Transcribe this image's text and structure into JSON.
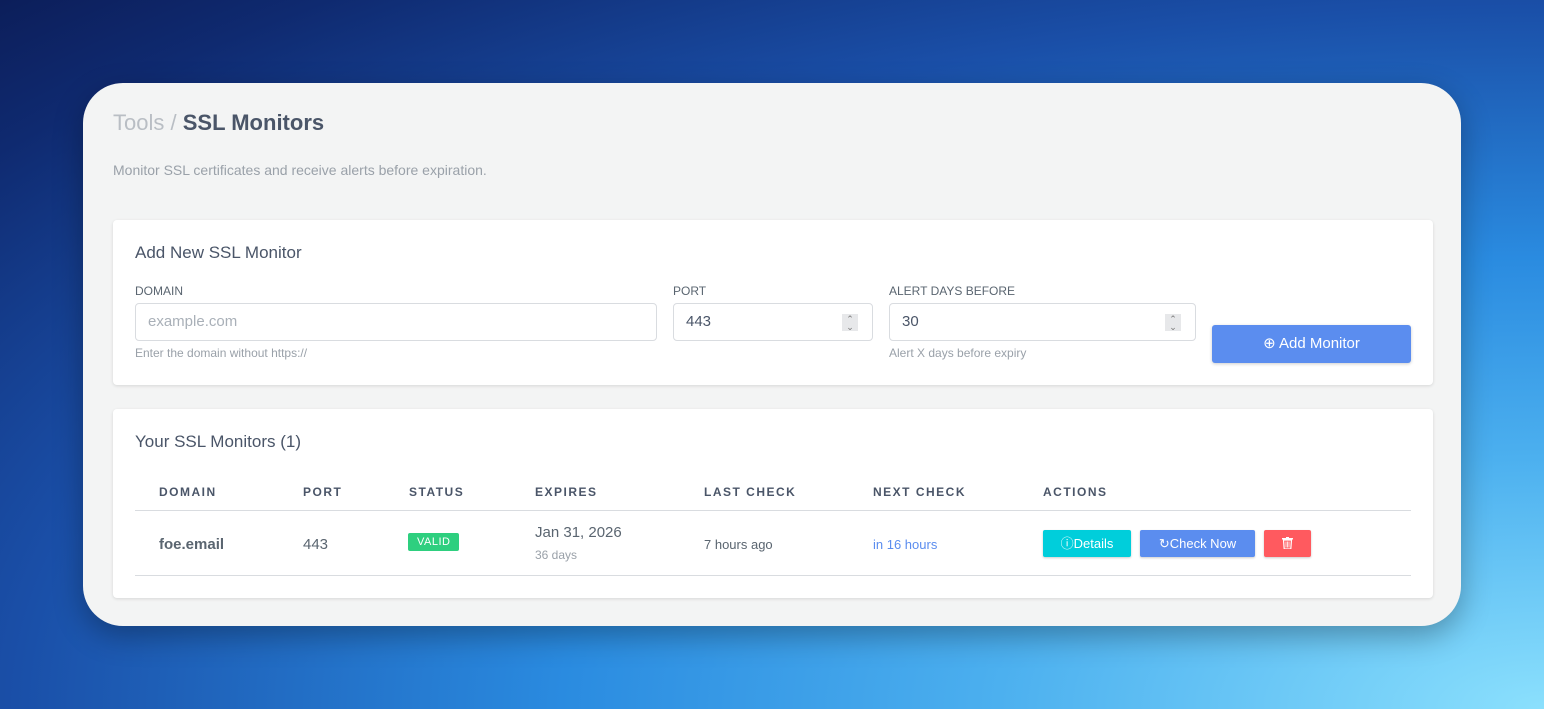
{
  "breadcrumb": {
    "parent": "Tools",
    "separator": "/",
    "current": "SSL Monitors"
  },
  "subtitle": "Monitor SSL certificates and receive alerts before expiration.",
  "form": {
    "title": "Add New SSL Monitor",
    "domain": {
      "label": "DOMAIN",
      "placeholder": "example.com",
      "help": "Enter the domain without https://"
    },
    "port": {
      "label": "PORT",
      "value": "443"
    },
    "alert": {
      "label": "ALERT DAYS BEFORE",
      "value": "30",
      "help": "Alert X days before expiry"
    },
    "submit": "Add Monitor"
  },
  "monitors": {
    "title": "Your SSL Monitors (1)",
    "columns": [
      "DOMAIN",
      "PORT",
      "STATUS",
      "EXPIRES",
      "LAST CHECK",
      "NEXT CHECK",
      "ACTIONS"
    ],
    "rows": [
      {
        "domain": "foe.email",
        "port": "443",
        "status": "VALID",
        "expires": "Jan 31, 2026",
        "expires_in": "36 days",
        "last_check": "7 hours ago",
        "next_check": "in 16 hours",
        "details": "Details",
        "check_now": "Check Now"
      }
    ]
  },
  "colors": {
    "primary": "#5b8def",
    "info": "#00cedb",
    "danger": "#ff5a5f",
    "success": "#2ecf7f",
    "link": "#5b8def"
  }
}
